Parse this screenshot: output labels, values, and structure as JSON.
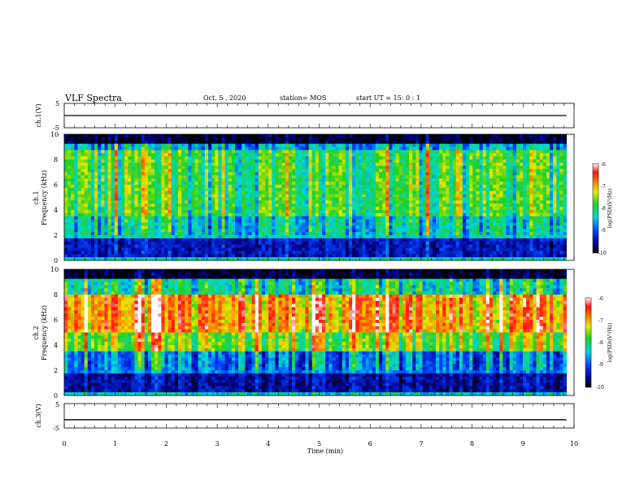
{
  "header": {
    "title": "VLF Spectra",
    "date": "Oct. 5 , 2020",
    "station": "station= MOS",
    "start": "start UT = 15: 0 : 1"
  },
  "chart_data": [
    {
      "type": "line",
      "title": "",
      "ylabel": "ch.1(V)",
      "ylim": [
        -5,
        5
      ],
      "yticks": [
        "5",
        "-5"
      ],
      "xlim": [
        0,
        10
      ],
      "series": [
        {
          "values": [
            0,
            0
          ],
          "x": [
            0,
            9.85
          ]
        }
      ]
    },
    {
      "type": "heatmap",
      "ylabel": "ch.1\nFrequency (kHz)",
      "ylabel_lines": [
        "ch.1",
        "Frequency (kHz)"
      ],
      "ylim": [
        0,
        10
      ],
      "yticks": [
        "0",
        "2",
        "4",
        "6",
        "8",
        "10"
      ],
      "xlim": [
        0,
        10
      ],
      "data_extent_min": 9.85,
      "colorbar": {
        "label": "log(PSD)(V²/Hz)",
        "ticks": [
          "-6",
          "-7",
          "-8",
          "-9",
          "-10"
        ],
        "range": [
          -10,
          -6
        ]
      },
      "band_profile": [
        {
          "f": [
            0,
            0.3
          ],
          "level": -8.3
        },
        {
          "f": [
            0.3,
            1.7
          ],
          "level": -9.4
        },
        {
          "f": [
            1.7,
            3.5
          ],
          "level": -8.4
        },
        {
          "f": [
            3.5,
            8.7
          ],
          "level": -7.9
        },
        {
          "f": [
            8.7,
            9.3
          ],
          "level": -8.6
        },
        {
          "f": [
            9.3,
            10
          ],
          "level": -9.9
        }
      ]
    },
    {
      "type": "heatmap",
      "ylabel": "ch.2\nFrequency (kHz)",
      "ylabel_lines": [
        "ch.2",
        "Frequency (kHz)"
      ],
      "ylim": [
        0,
        10
      ],
      "yticks": [
        "0",
        "2",
        "4",
        "6",
        "8",
        "10"
      ],
      "xlim": [
        0,
        10
      ],
      "data_extent_min": 9.85,
      "colorbar": {
        "label": "log(PSD)(V²/Hz)",
        "ticks": [
          "-6",
          "-7",
          "-8",
          "-9",
          "-10"
        ],
        "range": [
          -10,
          -6
        ]
      },
      "band_profile": [
        {
          "f": [
            0,
            0.3
          ],
          "level": -8.4
        },
        {
          "f": [
            0.3,
            1.7
          ],
          "level": -9.5
        },
        {
          "f": [
            1.7,
            3.5
          ],
          "level": -8.8
        },
        {
          "f": [
            3.5,
            5.0
          ],
          "level": -7.6
        },
        {
          "f": [
            5.0,
            8.0
          ],
          "level": -6.9
        },
        {
          "f": [
            8.0,
            9.3
          ],
          "level": -8.2
        },
        {
          "f": [
            9.3,
            10
          ],
          "level": -9.9
        }
      ]
    },
    {
      "type": "line",
      "ylabel": "ch.3(V)",
      "ylim": [
        -5,
        5
      ],
      "yticks": [
        "5",
        "-5"
      ],
      "xlim": [
        0,
        10
      ],
      "xlabel": "Time (min)",
      "xticks": [
        "0",
        "1",
        "2",
        "3",
        "4",
        "5",
        "6",
        "7",
        "8",
        "9",
        "10"
      ],
      "series": [
        {
          "values": [
            -1.6,
            -1.6
          ],
          "x": [
            0,
            9.85
          ]
        }
      ]
    }
  ]
}
